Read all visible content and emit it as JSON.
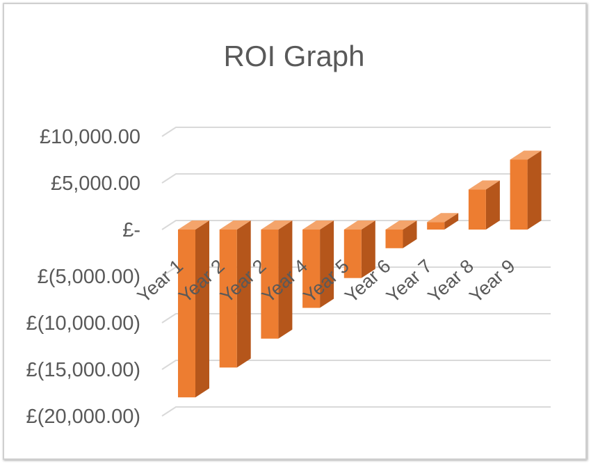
{
  "chart_data": {
    "type": "bar",
    "style": "3d-column",
    "title": "ROI Graph",
    "xlabel": "",
    "ylabel": "",
    "categories": [
      "Year 1",
      "Year 2",
      "Year 2",
      "Year 4",
      "Year 5",
      "Year 6",
      "Year 7",
      "Year 8",
      "Year 9"
    ],
    "series": [
      {
        "values": [
          -18000,
          -14800,
          -11700,
          -8400,
          -5200,
          -2000,
          800,
          4300,
          7500
        ]
      }
    ],
    "ylim": [
      -20000,
      10000
    ],
    "yticks": [
      10000,
      5000,
      0,
      -5000,
      -10000,
      -15000,
      -20000
    ],
    "ytick_labels": [
      "£10,000.00",
      "£5,000.00",
      "£-",
      "£(5,000.00)",
      "£(10,000.00)",
      "£(15,000.00)",
      "£(20,000.00)"
    ],
    "grid": true,
    "legend": "none",
    "colors": {
      "bar_front": "#ED7D31",
      "bar_side": "#B5561B",
      "bar_top": "#F4A46B",
      "grid": "#D9D9D9",
      "text": "#595959"
    }
  }
}
